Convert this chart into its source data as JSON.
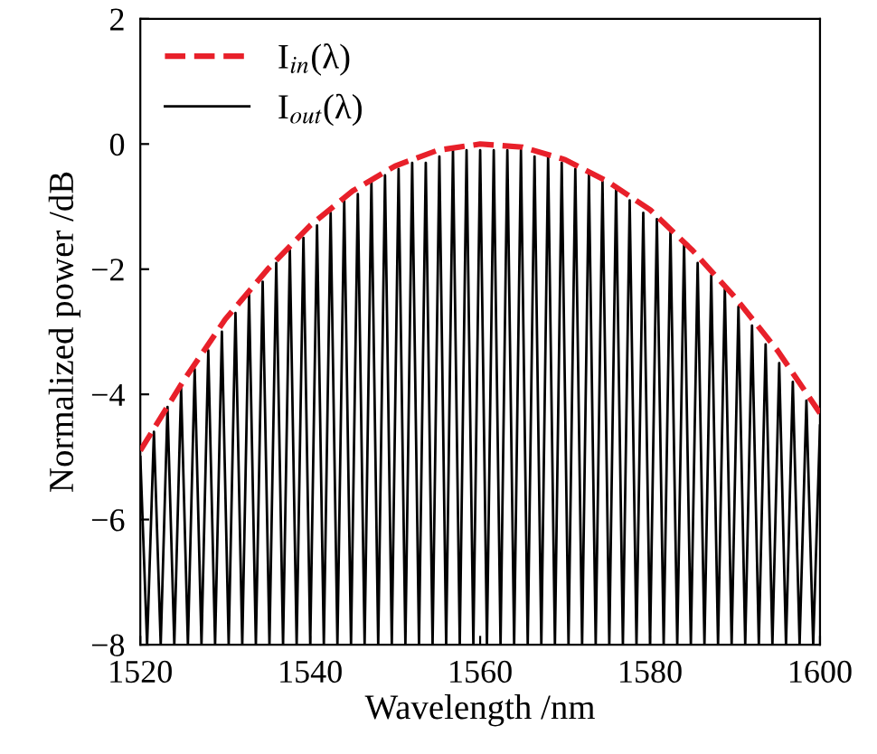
{
  "chart_data": {
    "type": "line",
    "xlabel": "Wavelength /nm",
    "ylabel": "Normalized power /dB",
    "xlim": [
      1520,
      1600
    ],
    "ylim": [
      -8,
      2
    ],
    "xticks": [
      1520,
      1540,
      1560,
      1580,
      1600
    ],
    "yticks": [
      -8,
      -6,
      -4,
      -2,
      0,
      2
    ],
    "grid": false,
    "legend": "top left",
    "marker": "none",
    "series": [
      {
        "name": "I$_{in}$(λ)",
        "color": "#e8202a",
        "line_style": "dashed",
        "x": [
          1520,
          1525,
          1530,
          1535,
          1540,
          1545,
          1550,
          1555,
          1560,
          1565,
          1570,
          1575,
          1580,
          1585,
          1590,
          1595,
          1600
        ],
        "values": [
          -4.9,
          -3.8,
          -2.8,
          -2.0,
          -1.3,
          -0.75,
          -0.35,
          -0.1,
          0,
          -0.05,
          -0.25,
          -0.6,
          -1.05,
          -1.7,
          -2.45,
          -3.3,
          -4.3
        ]
      },
      {
        "name": "I$_{out}$(λ)",
        "color": "#000000",
        "line_style": "solid",
        "x": [
          1520,
          1520.8,
          1521.6,
          1522.4,
          1523.2,
          1524,
          1524.8,
          1525.6,
          1526.4,
          1527.2,
          1528,
          1528.8,
          1529.6,
          1530.4,
          1531.2,
          1532,
          1532.8,
          1533.6,
          1534.4,
          1535.2,
          1536,
          1536.8,
          1537.6,
          1538.4,
          1539.2,
          1540,
          1540.8,
          1541.6,
          1542.4,
          1543.2,
          1544,
          1544.8,
          1545.6,
          1546.4,
          1547.2,
          1548,
          1548.8,
          1549.6,
          1550.4,
          1551.2,
          1552,
          1552.8,
          1553.6,
          1554.4,
          1555.2,
          1556,
          1556.8,
          1557.6,
          1558.4,
          1559.2,
          1560,
          1560.8,
          1561.6,
          1562.4,
          1563.2,
          1564,
          1564.8,
          1565.6,
          1566.4,
          1567.2,
          1568,
          1568.8,
          1569.6,
          1570.4,
          1571.2,
          1572,
          1572.8,
          1573.6,
          1574.4,
          1575.2,
          1576,
          1576.8,
          1577.6,
          1578.4,
          1579.2,
          1580,
          1580.8,
          1581.6,
          1582.4,
          1583.2,
          1584,
          1584.8,
          1585.6,
          1586.4,
          1587.2,
          1588,
          1588.8,
          1589.6,
          1590.4,
          1591.2,
          1592,
          1592.8,
          1593.6,
          1594.4,
          1595.2,
          1596,
          1596.8,
          1597.6,
          1598.4,
          1599.2,
          1600
        ],
        "values": [
          -5.0,
          -8,
          -4.6,
          -8,
          -4.2,
          -8,
          -3.9,
          -8,
          -3.6,
          -8,
          -3.3,
          -8,
          -3.0,
          -8,
          -2.7,
          -8,
          -2.4,
          -8,
          -2.2,
          -8,
          -1.9,
          -8,
          -1.7,
          -8,
          -1.5,
          -8,
          -1.3,
          -8,
          -1.1,
          -8,
          -0.9,
          -8,
          -0.8,
          -8,
          -0.6,
          -8,
          -0.5,
          -8,
          -0.4,
          -8,
          -0.3,
          -8,
          -0.3,
          -8,
          -0.2,
          -8,
          -0.1,
          -8,
          -0.1,
          -8,
          -0.1,
          -8,
          -0.1,
          -8,
          -0.1,
          -8,
          -0.1,
          -8,
          -0.2,
          -8,
          -0.2,
          -8,
          -0.3,
          -8,
          -0.4,
          -8,
          -0.5,
          -8,
          -0.6,
          -8,
          -0.7,
          -8,
          -0.9,
          -8,
          -1.1,
          -8,
          -1.2,
          -8,
          -1.4,
          -8,
          -1.6,
          -8,
          -1.9,
          -8,
          -2.1,
          -8,
          -2.3,
          -8,
          -2.6,
          -8,
          -2.9,
          -8,
          -3.2,
          -8,
          -3.5,
          -8,
          -3.8,
          -8,
          -4.1,
          -8,
          -4.5
        ]
      }
    ]
  }
}
